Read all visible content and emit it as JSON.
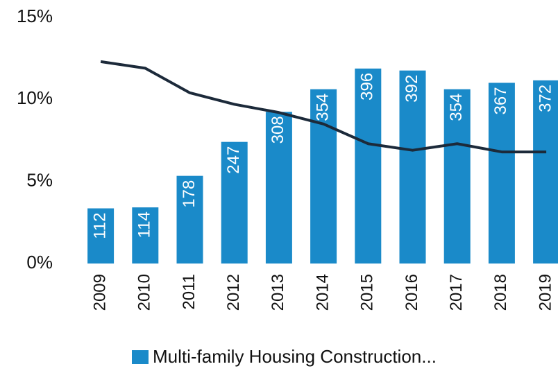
{
  "chart_data": {
    "type": "bar-line",
    "categories": [
      "2009",
      "2010",
      "2011",
      "2012",
      "2013",
      "2014",
      "2015",
      "2016",
      "2017",
      "2018",
      "2019"
    ],
    "series": [
      {
        "name": "Multi-family Housing Construction...",
        "type": "bar",
        "axis": "y2",
        "color": "#1a8ac9",
        "values": [
          112,
          114,
          178,
          247,
          308,
          354,
          396,
          392,
          354,
          367,
          372
        ]
      },
      {
        "type": "line",
        "axis": "y",
        "color": "#1c2a3a",
        "values": [
          12.3,
          11.9,
          10.4,
          9.7,
          9.2,
          8.5,
          7.3,
          6.9,
          7.3,
          6.8,
          6.8
        ]
      }
    ],
    "ylim": [
      0,
      15
    ],
    "yticks": [
      {
        "value": 0,
        "label": "0%"
      },
      {
        "value": 5,
        "label": "5%"
      },
      {
        "value": 10,
        "label": "10%"
      },
      {
        "value": 15,
        "label": "15%"
      }
    ],
    "y2lim": [
      0,
      500
    ],
    "legend": "bottom"
  }
}
